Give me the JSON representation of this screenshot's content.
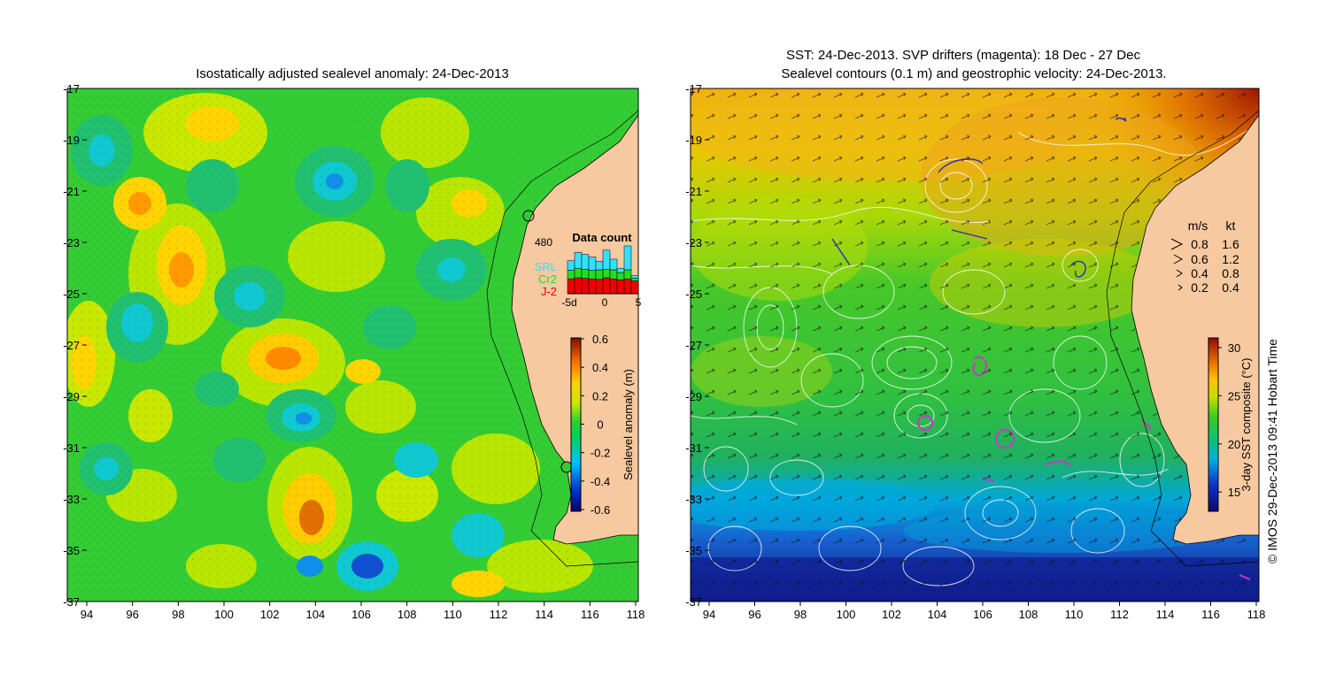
{
  "left_panel": {
    "title": "Isostatically adjusted sealevel anomaly: 24-Dec-2013",
    "x_ticks": [
      "94",
      "96",
      "98",
      "100",
      "102",
      "104",
      "106",
      "108",
      "110",
      "112",
      "114",
      "116",
      "118"
    ],
    "y_ticks": [
      "-17",
      "-19",
      "-21",
      "-23",
      "-25",
      "-27",
      "-29",
      "-31",
      "-33",
      "-35",
      "-37"
    ],
    "colorbar": {
      "label": "Sealevel anomaly (m)",
      "ticks": [
        "0.6",
        "0.4",
        "0.2",
        "0",
        "-0.2",
        "-0.4",
        "-0.6"
      ],
      "range": [
        -0.6,
        0.6
      ]
    },
    "data_count": {
      "title": "Data count",
      "max_label": "480",
      "legend": [
        {
          "name": "SRL",
          "color": "#33e0ff"
        },
        {
          "name": "Cr2",
          "color": "#22dd22"
        },
        {
          "name": "J-2",
          "color": "#ee0000"
        }
      ],
      "x_ticks": [
        "-5d",
        "0",
        "5"
      ],
      "bars": [
        {
          "srl": 0.18,
          "cr2": 0.16,
          "j2": 0.28
        },
        {
          "srl": 0.3,
          "cr2": 0.18,
          "j2": 0.3
        },
        {
          "srl": 0.28,
          "cr2": 0.17,
          "j2": 0.29
        },
        {
          "srl": 0.25,
          "cr2": 0.16,
          "j2": 0.28
        },
        {
          "srl": 0.16,
          "cr2": 0.18,
          "j2": 0.27
        },
        {
          "srl": 0.36,
          "cr2": 0.16,
          "j2": 0.3
        },
        {
          "srl": 0.2,
          "cr2": 0.17,
          "j2": 0.28
        },
        {
          "srl": 0.08,
          "cr2": 0.14,
          "j2": 0.26
        },
        {
          "srl": 0.45,
          "cr2": 0.17,
          "j2": 0.28
        },
        {
          "srl": 0.05,
          "cr2": 0.05,
          "j2": 0.24
        }
      ]
    }
  },
  "right_panel": {
    "title_line1": "SST: 24-Dec-2013. SVP drifters (magenta): 18 Dec - 27 Dec",
    "title_line2": "Sealevel contours (0.1 m) and geostrophic velocity: 24-Dec-2013.",
    "x_ticks": [
      "94",
      "96",
      "98",
      "100",
      "102",
      "104",
      "106",
      "108",
      "110",
      "112",
      "114",
      "116",
      "118"
    ],
    "y_ticks": [
      "-17",
      "-19",
      "-21",
      "-23",
      "-25",
      "-27",
      "-29",
      "-31",
      "-33",
      "-35",
      "-37"
    ],
    "velocity_legend": {
      "header_ms": "m/s",
      "header_kt": "kt",
      "rows": [
        {
          "ms": "0.8",
          "kt": "1.6"
        },
        {
          "ms": "0.6",
          "kt": "1.2"
        },
        {
          "ms": "0.4",
          "kt": "0.8"
        },
        {
          "ms": "0.2",
          "kt": "0.4"
        }
      ]
    },
    "colorbar": {
      "label": "3-day SST composite (°C)",
      "ticks": [
        "30",
        "25",
        "20",
        "15"
      ],
      "range": [
        13,
        31
      ]
    }
  },
  "copyright": "© IMOS 29-Dec-2013 09:41 Hobart Time",
  "colors": {
    "land": "#f7c9a0",
    "sla_green": "#2ecc2e",
    "contour": "#ffffff",
    "drifter": "#cc33cc"
  }
}
